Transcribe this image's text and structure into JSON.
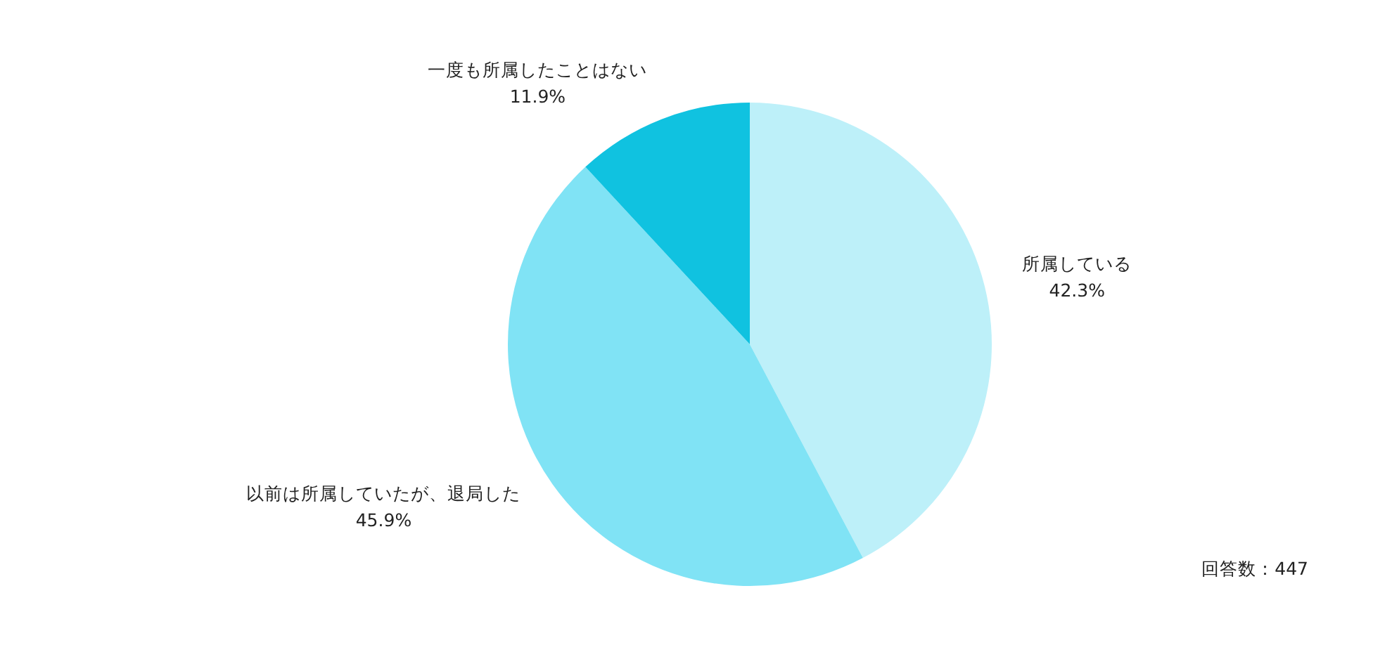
{
  "chart_data": {
    "type": "pie",
    "categories": [
      "所属している",
      "以前は所属していたが、退局した",
      "一度も所属したことはない"
    ],
    "values": [
      42.3,
      45.9,
      11.9
    ],
    "colors": [
      "#bdf0f9",
      "#80e3f5",
      "#10c2e0"
    ],
    "value_labels": [
      "42.3%",
      "45.9%",
      "11.9%"
    ],
    "annotations": [
      "回答数：447"
    ]
  }
}
